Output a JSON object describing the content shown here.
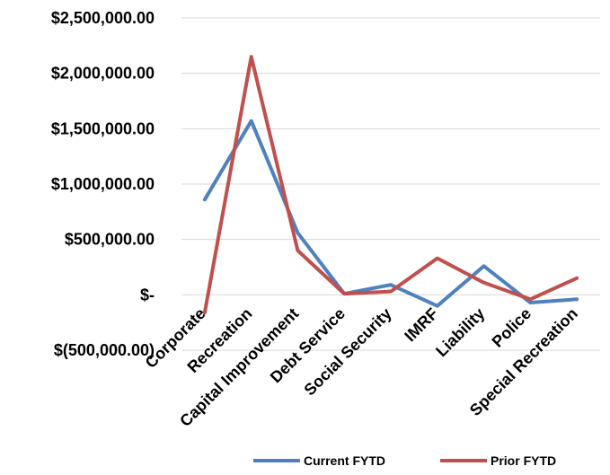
{
  "chart_data": {
    "type": "line",
    "categories": [
      "Corporate",
      "Recreation",
      "Capital Improvement",
      "Debt Service",
      "Social Security",
      "IMRF",
      "Liability",
      "Police",
      "Special Recreation"
    ],
    "series": [
      {
        "name": "Current FYTD",
        "color": "#4f81bd",
        "values": [
          860000,
          1570000,
          560000,
          10000,
          90000,
          -100000,
          260000,
          -70000,
          -40000
        ]
      },
      {
        "name": "Prior FYTD",
        "color": "#c0504d",
        "values": [
          -160000,
          2150000,
          400000,
          10000,
          30000,
          330000,
          110000,
          -40000,
          150000
        ]
      }
    ],
    "ylim": [
      -500000,
      2500000
    ],
    "y_ticks": [
      2500000,
      2000000,
      1500000,
      1000000,
      500000,
      0,
      -500000
    ],
    "y_tick_labels": [
      "$2,500,000.00",
      "$2,000,000.00",
      "$1,500,000.00",
      "$1,000,000.00",
      "$500,000.00",
      "$-",
      "$(500,000.00)"
    ],
    "grid": true,
    "legend_position": "bottom",
    "title": "",
    "xlabel": "",
    "ylabel": ""
  }
}
